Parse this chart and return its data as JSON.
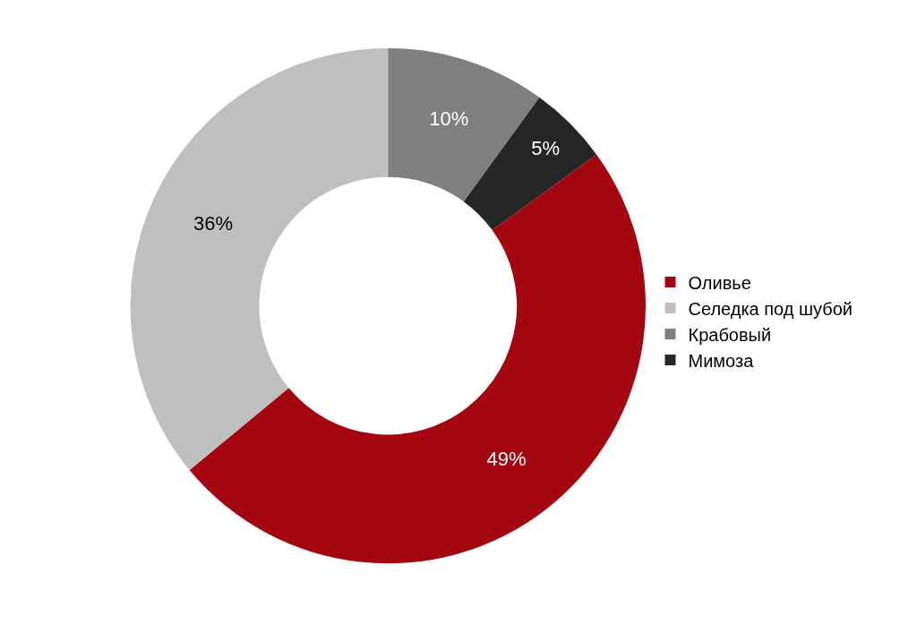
{
  "chart_data": {
    "type": "donut",
    "categories": [
      "Оливье",
      "Селедка под шубой",
      "Крабовый",
      "Мимоза"
    ],
    "values": [
      49,
      36,
      10,
      5
    ],
    "colors": [
      "#a50710",
      "#bfbfbf",
      "#7f7f7f",
      "#262626"
    ],
    "value_labels": [
      "49%",
      "36%",
      "10%",
      "5%"
    ],
    "legend": "right"
  }
}
